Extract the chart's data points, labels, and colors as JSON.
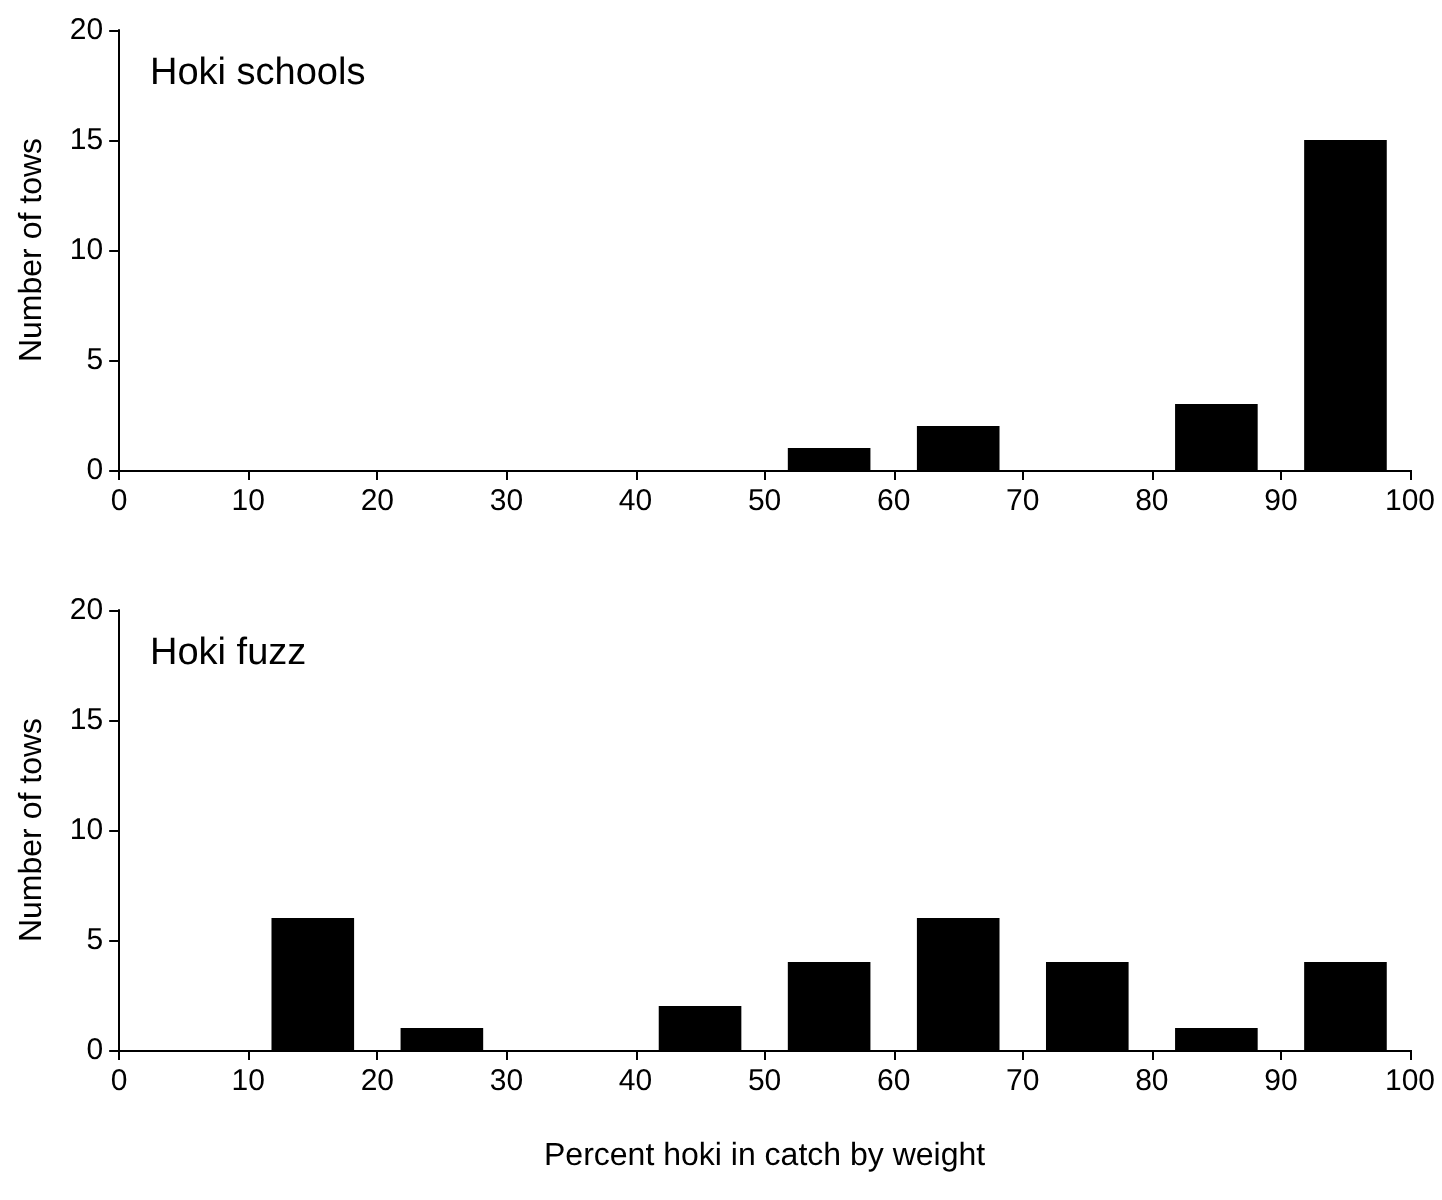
{
  "chart_data": [
    {
      "type": "histogram",
      "title": "Hoki schools",
      "ylabel": "Number of tows",
      "bins": [
        0,
        10,
        20,
        30,
        40,
        50,
        60,
        70,
        80,
        90,
        100
      ],
      "values": [
        0,
        0,
        0,
        0,
        0,
        1,
        2,
        0,
        3,
        15
      ],
      "color": "#000000",
      "xlim": [
        0,
        100
      ],
      "xticks": [
        0,
        10,
        20,
        30,
        40,
        50,
        60,
        70,
        80,
        90,
        100
      ],
      "ylim": [
        0,
        20
      ],
      "yticks": [
        0,
        5,
        10,
        15,
        20
      ],
      "grid": false
    },
    {
      "type": "histogram",
      "title": "Hoki fuzz",
      "xlabel": "Percent hoki in catch by weight",
      "ylabel": "Number of tows",
      "bins": [
        0,
        10,
        20,
        30,
        40,
        50,
        60,
        70,
        80,
        90,
        100
      ],
      "values": [
        0,
        6,
        1,
        0,
        2,
        4,
        6,
        4,
        1,
        4
      ],
      "color": "#000000",
      "xlim": [
        0,
        100
      ],
      "xticks": [
        0,
        10,
        20,
        30,
        40,
        50,
        60,
        70,
        80,
        90,
        100
      ],
      "ylim": [
        0,
        20
      ],
      "yticks": [
        0,
        5,
        10,
        15,
        20
      ],
      "grid": false
    }
  ]
}
